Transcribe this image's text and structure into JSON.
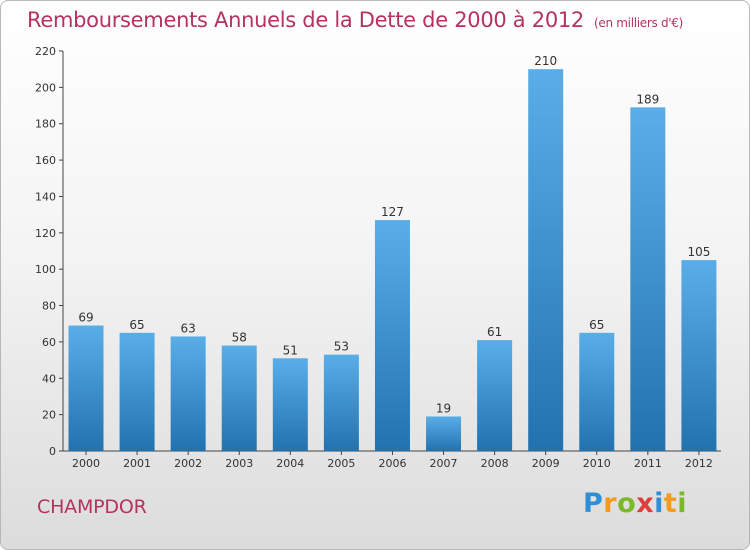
{
  "header": {
    "title": "Remboursements Annuels de la Dette de 2000 à 2012",
    "subtitle": "(en milliers d'€)"
  },
  "footer": {
    "commune": "CHAMPDOR",
    "logo_text": "Proxiti",
    "logo_letters": [
      {
        "ch": "P",
        "color": "#2e8fd6"
      },
      {
        "ch": "r",
        "color": "#f39a1f"
      },
      {
        "ch": "o",
        "color": "#7ab929"
      },
      {
        "ch": "x",
        "color": "#e23d3d"
      },
      {
        "ch": "i",
        "color": "#2e8fd6"
      },
      {
        "ch": "t",
        "color": "#f39a1f"
      },
      {
        "ch": "i",
        "color": "#7ab929"
      }
    ]
  },
  "colors": {
    "title": "#b5335c",
    "bar_light": "#5aaee8",
    "bar_dark": "#2272b0"
  },
  "chart_data": {
    "type": "bar",
    "title": "Remboursements Annuels de la Dette de 2000 à 2012",
    "subtitle": "(en milliers d'€)",
    "categories": [
      "2000",
      "2001",
      "2002",
      "2003",
      "2004",
      "2005",
      "2006",
      "2007",
      "2008",
      "2009",
      "2010",
      "2011",
      "2012"
    ],
    "values": [
      69,
      65,
      63,
      58,
      51,
      53,
      127,
      19,
      61,
      210,
      65,
      189,
      105
    ],
    "ylim": [
      0,
      220
    ],
    "yticks": [
      0,
      20,
      40,
      60,
      80,
      100,
      120,
      140,
      160,
      180,
      200,
      220
    ],
    "grid": false,
    "data_labels": true
  }
}
